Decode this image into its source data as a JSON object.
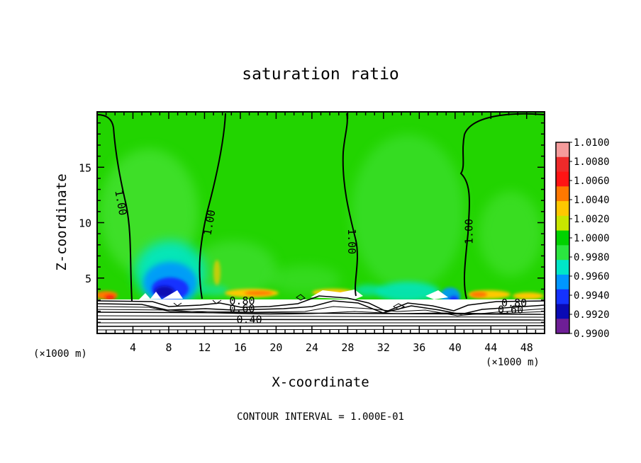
{
  "chart_data": {
    "type": "heatmap",
    "title": "saturation ratio",
    "xlabel": "X-coordinate",
    "ylabel": "Z-coordinate",
    "x_unit_left": "(×1000 m)",
    "x_unit_right": "(×1000 m)",
    "xlim": [
      0,
      50
    ],
    "ylim": [
      0,
      20
    ],
    "x_ticks": [
      4,
      8,
      12,
      16,
      20,
      24,
      28,
      32,
      36,
      40,
      44,
      48
    ],
    "y_ticks": [
      5,
      10,
      15
    ],
    "colorbar": {
      "min": 0.99,
      "max": 1.01,
      "labels": [
        "1.0100",
        "1.0080",
        "1.0060",
        "1.0040",
        "1.0020",
        "1.0000",
        "0.9980",
        "0.9960",
        "0.9940",
        "0.9920",
        "0.9900"
      ],
      "colors": [
        "#f49b9b",
        "#ee2a2a",
        "#ff1414",
        "#ff7800",
        "#ffc800",
        "#c8e600",
        "#00d200",
        "#2be640",
        "#00e6c8",
        "#0096ff",
        "#1432ff",
        "#0a0ab4",
        "#6e1e96"
      ]
    },
    "contour_labels": [
      {
        "text": "1.00",
        "x": 2.6,
        "z": 11.8,
        "rotate": 80
      },
      {
        "text": "1.00",
        "x": 12.6,
        "z": 10.0,
        "rotate": -80
      },
      {
        "text": "1.00",
        "x": 28.4,
        "z": 8.3,
        "rotate": 90
      },
      {
        "text": "1.00",
        "x": 41.6,
        "z": 9.2,
        "rotate": -90
      },
      {
        "text": "0.80",
        "x": 16.2,
        "z": 2.9,
        "rotate": 0
      },
      {
        "text": "0.60",
        "x": 16.2,
        "z": 2.2,
        "rotate": 0
      },
      {
        "text": "0.40",
        "x": 17.0,
        "z": 1.2,
        "rotate": 0
      },
      {
        "text": "0.80",
        "x": 46.6,
        "z": 2.7,
        "rotate": 0
      },
      {
        "text": "0.60",
        "x": 46.2,
        "z": 2.1,
        "rotate": 0
      }
    ],
    "contour_interval": "CONTOUR INTERVAL = 1.000E-01"
  }
}
